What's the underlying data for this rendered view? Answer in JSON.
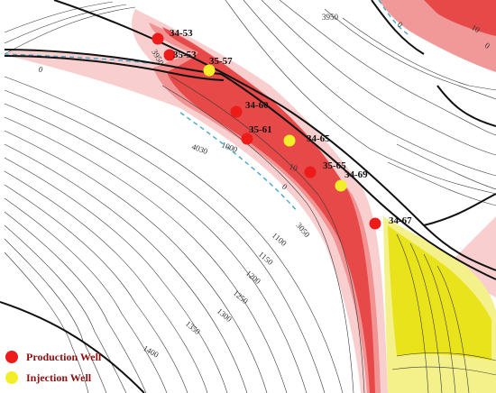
{
  "colors": {
    "production": "#ee1b1b",
    "injection": "#f2ee2a",
    "fault": "#111111",
    "contour": "#3a3a3a",
    "zero_contour": "#4aa6c8",
    "red_zone_light": "#f7c9c9",
    "red_zone_mid": "#f08d8d",
    "red_zone_dark": "#e53b3b",
    "yellow_zone": "#f4f08a",
    "yellow_zone_dark": "#e6e000"
  },
  "wells": [
    {
      "id": "34-53",
      "type": "production"
    },
    {
      "id": "35-53",
      "type": "production"
    },
    {
      "id": "35-57",
      "type": "injection"
    },
    {
      "id": "34-60",
      "type": "production"
    },
    {
      "id": "35-61",
      "type": "production"
    },
    {
      "id": "34-65",
      "type": "injection"
    },
    {
      "id": "35-65",
      "type": "production"
    },
    {
      "id": "34-69",
      "type": "injection"
    },
    {
      "id": "34-67",
      "type": "production"
    }
  ],
  "contour_labels": [
    {
      "text": "3950"
    },
    {
      "text": "3950"
    },
    {
      "text": "0"
    },
    {
      "text": "4030"
    },
    {
      "text": "1000"
    },
    {
      "text": "10"
    },
    {
      "text": "0"
    },
    {
      "text": "3050"
    },
    {
      "text": "1100"
    },
    {
      "text": "1150"
    },
    {
      "text": "1200"
    },
    {
      "text": "1250"
    },
    {
      "text": "1300"
    },
    {
      "text": "1350"
    },
    {
      "text": "1400"
    },
    {
      "text": "0"
    },
    {
      "text": "10"
    },
    {
      "text": "0"
    }
  ],
  "legend": {
    "production_label": "Production Well",
    "injection_label": "Injection Well"
  }
}
